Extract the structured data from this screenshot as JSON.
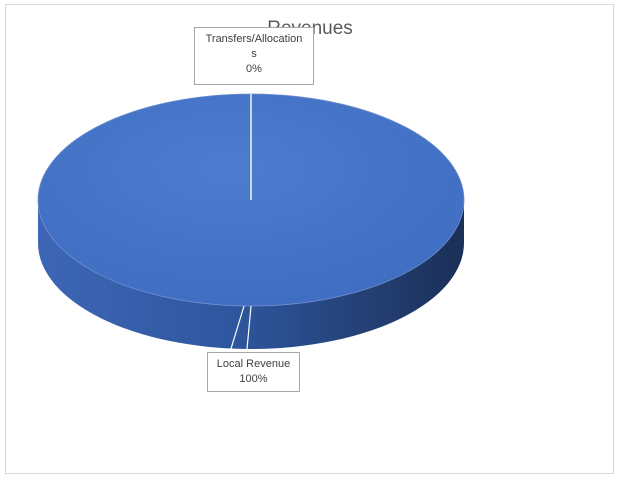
{
  "chart_data": {
    "type": "pie",
    "title": "Revenues",
    "categories": [
      "Transfers/Allocations",
      "Local Revenue"
    ],
    "values": [
      0,
      100
    ],
    "data_labels": [
      {
        "category_lines": [
          "Transfers/Allocation",
          "s"
        ],
        "percent": "0%"
      },
      {
        "category_lines": [
          "Local Revenue"
        ],
        "percent": "100%"
      }
    ],
    "colors": {
      "pie_top": "#4472C4",
      "pie_side_light": "#3A62B2",
      "pie_side_dark": "#1E3461",
      "slice_border": "#FFFFFF"
    },
    "legend": "none",
    "style": "3d"
  }
}
